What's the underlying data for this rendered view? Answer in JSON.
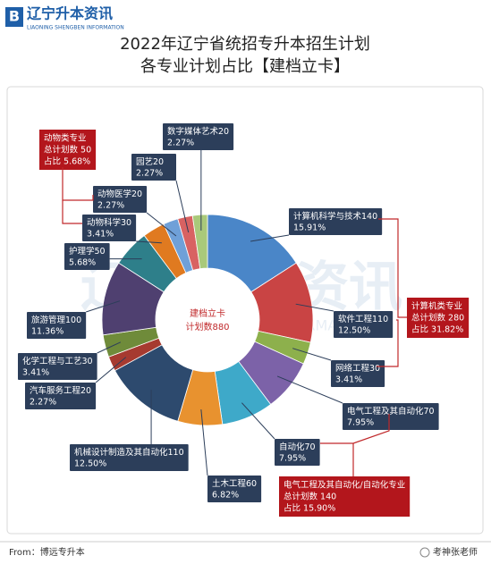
{
  "header": {
    "logo": "辽宁升本资讯",
    "logo_sub": "LIAONING SHENGBEN INFORMATION"
  },
  "chart_data": {
    "type": "donut",
    "title": [
      "2022年辽宁省统招专升本招生计划",
      "各专业计划占比【建档立卡】"
    ],
    "center_label": [
      "建档立卡",
      "计划数880"
    ],
    "categories": [
      "计算机科学与技术",
      "软件工程",
      "网络工程",
      "电气工程及其自动化",
      "自动化",
      "土木工程",
      "机械设计制造及其自动化",
      "汽车服务工程",
      "化学工程与工艺",
      "旅游管理",
      "护理学",
      "动物科学",
      "动物医学",
      "园艺",
      "数字媒体艺术"
    ],
    "values": [
      140,
      110,
      30,
      70,
      70,
      60,
      110,
      20,
      30,
      100,
      50,
      30,
      20,
      20,
      20
    ],
    "shares": [
      15.91,
      12.5,
      3.41,
      7.95,
      7.95,
      6.82,
      12.5,
      2.27,
      3.41,
      11.36,
      5.68,
      3.41,
      2.27,
      2.27,
      2.27
    ],
    "share_labels": [
      "15.91%",
      "12.50%",
      "3.41%",
      "7.95%",
      "7.95%",
      "6.82%",
      "12.50%",
      "2.27%",
      "3.41%",
      "11.36%",
      "5.68%",
      "3.41%",
      "2.27%",
      "2.27%",
      "2.27%"
    ],
    "colors": [
      "#4a86c8",
      "#c94444",
      "#8db04c",
      "#7c62a8",
      "#3ea9c9",
      "#e8922f",
      "#2d4a6e",
      "#a63a30",
      "#6f8b3a",
      "#4f4070",
      "#2e7f8a",
      "#e07a20",
      "#6fa0d8",
      "#d86262",
      "#a9c97a"
    ],
    "annotations": [
      [
        "动物类专业",
        "总计划数 50",
        "占比 5.68%"
      ],
      [
        "计算机类专业",
        "总计划数 280",
        "占比 31.82%"
      ],
      [
        "电气工程及其自动化/自动化专业",
        "总计划数 140",
        "占比 15.90%"
      ]
    ]
  },
  "footer": {
    "source": "From：博远专升本",
    "author": "考神张老师"
  }
}
